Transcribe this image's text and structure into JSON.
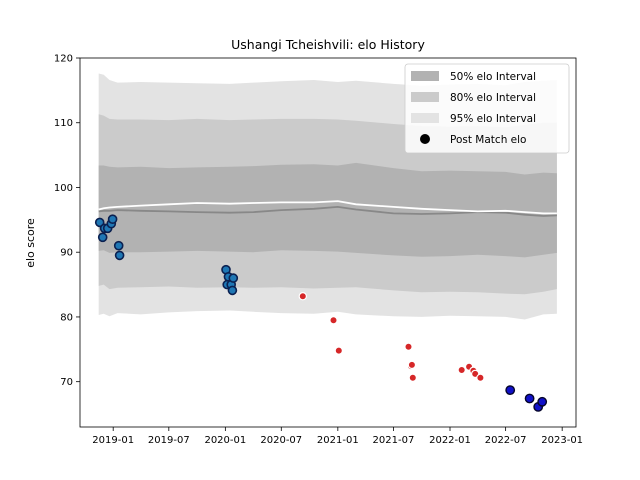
{
  "chart_data": {
    "type": "scatter",
    "title": "Ushangi Tcheishvili: elo History",
    "xlabel": "",
    "ylabel": "elo score",
    "xlim": [
      "2018-09-15",
      "2023-02-15"
    ],
    "ylim": [
      63,
      120
    ],
    "x_ticks": [
      "2019-01",
      "2019-07",
      "2020-01",
      "2020-07",
      "2021-01",
      "2021-07",
      "2022-01",
      "2022-07",
      "2023-01"
    ],
    "y_ticks": [
      70,
      80,
      90,
      100,
      110,
      120
    ],
    "grid": false,
    "legend_position": "top-right",
    "legend": [
      {
        "label": "50% elo Interval",
        "color": "#b2b2b2"
      },
      {
        "label": "80% elo Interval",
        "color": "#cbcbcb"
      },
      {
        "label": "95% elo Interval",
        "color": "#e3e3e3"
      },
      {
        "label": "Post Match elo",
        "color": "#000000"
      }
    ],
    "bands": {
      "x": [
        "2018-11-15",
        "2018-12-01",
        "2018-12-20",
        "2019-01-15",
        "2019-04-01",
        "2019-07-01",
        "2019-10-01",
        "2020-01-15",
        "2020-04-01",
        "2020-07-01",
        "2020-10-15",
        "2021-01-01",
        "2021-03-01",
        "2021-07-01",
        "2021-10-01",
        "2022-01-01",
        "2022-04-01",
        "2022-07-01",
        "2022-09-01",
        "2022-11-01",
        "2022-12-15"
      ],
      "interval_95": {
        "lower": [
          80.3,
          80.5,
          80.1,
          80.6,
          80.4,
          80.7,
          80.9,
          81.0,
          80.8,
          80.6,
          80.5,
          80.8,
          80.4,
          80.1,
          80.0,
          80.2,
          80.1,
          80.0,
          79.6,
          80.4,
          80.5
        ],
        "upper": [
          117.6,
          117.4,
          116.6,
          116.2,
          116.3,
          116.2,
          116.1,
          116.0,
          116.2,
          116.4,
          116.6,
          116.3,
          116.5,
          116.0,
          115.7,
          115.9,
          116.0,
          115.8,
          116.3,
          116.5,
          116.6
        ]
      },
      "interval_80": {
        "lower": [
          84.8,
          85.0,
          84.3,
          84.5,
          84.6,
          84.7,
          84.5,
          84.6,
          84.5,
          84.6,
          84.4,
          84.5,
          84.6,
          84.1,
          83.8,
          83.9,
          83.8,
          83.6,
          83.5,
          83.9,
          84.3
        ],
        "upper": [
          111.3,
          111.1,
          110.6,
          110.5,
          110.5,
          110.4,
          110.6,
          110.4,
          110.5,
          110.6,
          110.6,
          110.5,
          110.3,
          109.8,
          109.5,
          109.4,
          109.5,
          109.3,
          109.7,
          110.0,
          110.0
        ]
      },
      "interval_50": {
        "lower": [
          90.2,
          90.3,
          89.9,
          90.0,
          90.0,
          90.1,
          90.2,
          90.1,
          90.0,
          90.3,
          90.2,
          90.1,
          89.9,
          89.5,
          89.3,
          89.4,
          89.6,
          89.4,
          89.2,
          89.6,
          89.9
        ],
        "upper": [
          103.4,
          103.4,
          103.2,
          103.1,
          103.2,
          103.0,
          103.1,
          103.2,
          103.3,
          103.5,
          103.6,
          103.4,
          103.8,
          103.0,
          102.5,
          102.6,
          102.5,
          102.4,
          102.0,
          102.3,
          102.2
        ]
      },
      "median": [
        96.3,
        96.4,
        96.4,
        96.5,
        96.4,
        96.3,
        96.2,
        96.1,
        96.2,
        96.5,
        96.7,
        97.0,
        96.6,
        96.0,
        95.9,
        96.0,
        96.2,
        96.1,
        95.8,
        95.6,
        95.7
      ],
      "mean": [
        96.6,
        96.8,
        96.9,
        97.0,
        97.2,
        97.4,
        97.6,
        97.5,
        97.6,
        97.7,
        97.7,
        97.9,
        97.4,
        97.0,
        96.7,
        96.5,
        96.3,
        96.4,
        96.2,
        96.0,
        96.0
      ]
    },
    "series": [
      {
        "group": "blue",
        "points": [
          {
            "x": "2018-11-18",
            "y": 94.6
          },
          {
            "x": "2018-11-28",
            "y": 92.3
          },
          {
            "x": "2018-12-04",
            "y": 93.7
          },
          {
            "x": "2018-12-14",
            "y": 93.7
          },
          {
            "x": "2018-12-26",
            "y": 94.4
          },
          {
            "x": "2018-12-30",
            "y": 95.1
          },
          {
            "x": "2019-01-19",
            "y": 91.0
          },
          {
            "x": "2019-01-22",
            "y": 89.5
          },
          {
            "x": "2020-01-03",
            "y": 87.3
          },
          {
            "x": "2020-01-07",
            "y": 85.0
          },
          {
            "x": "2020-01-11",
            "y": 86.2
          },
          {
            "x": "2020-01-20",
            "y": 85.0
          },
          {
            "x": "2020-01-24",
            "y": 84.1
          },
          {
            "x": "2020-01-27",
            "y": 86.0
          }
        ]
      },
      {
        "group": "red",
        "points": [
          {
            "x": "2020-09-09",
            "y": 83.2
          },
          {
            "x": "2020-12-18",
            "y": 79.5
          },
          {
            "x": "2021-01-04",
            "y": 74.8
          },
          {
            "x": "2021-08-19",
            "y": 75.4
          },
          {
            "x": "2021-08-27",
            "y": 72.4
          },
          {
            "x": "2021-08-30",
            "y": 72.6
          },
          {
            "x": "2021-09-02",
            "y": 70.6
          },
          {
            "x": "2022-02-08",
            "y": 71.8
          },
          {
            "x": "2022-03-04",
            "y": 72.3
          },
          {
            "x": "2022-03-18",
            "y": 71.7
          },
          {
            "x": "2022-03-24",
            "y": 71.2
          },
          {
            "x": "2022-04-10",
            "y": 70.6
          }
        ]
      },
      {
        "group": "navy",
        "points": [
          {
            "x": "2022-07-16",
            "y": 68.7
          },
          {
            "x": "2022-09-17",
            "y": 67.4
          },
          {
            "x": "2022-10-15",
            "y": 66.1
          },
          {
            "x": "2022-10-28",
            "y": 66.9
          }
        ]
      }
    ]
  }
}
